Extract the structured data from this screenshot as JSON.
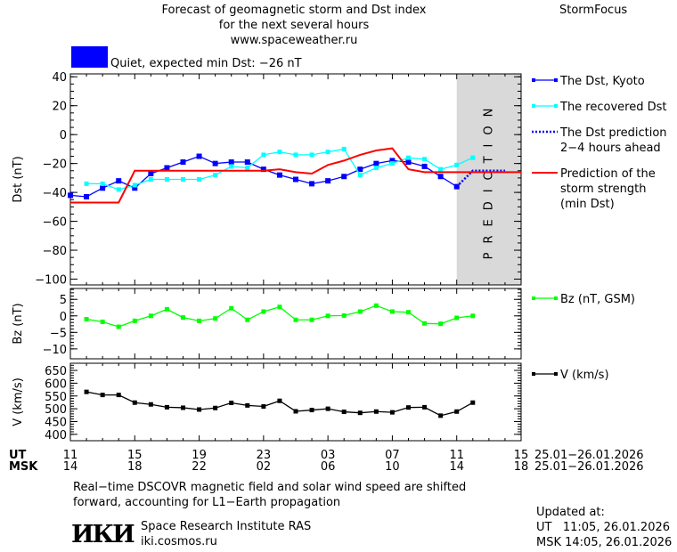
{
  "header": {
    "title_lines": [
      "Forecast of geomagnetic storm and Dst index",
      "for the next several hours",
      "www.spaceweather.ru"
    ],
    "brand": "StormFocus",
    "status_color": "#0000ff",
    "status_text": "Quiet, expected min Dst: −26 nT"
  },
  "time_axis": {
    "ut_label": "UT",
    "msk_label": "MSK",
    "ut_ticks": [
      "11",
      "15",
      "19",
      "23",
      "03",
      "07",
      "11",
      "15"
    ],
    "msk_ticks": [
      "14",
      "18",
      "22",
      "02",
      "06",
      "10",
      "14",
      "18"
    ],
    "date_range": "25.01−26.01.2026"
  },
  "footer": {
    "note_lines": [
      "Real−time DSCOVR magnetic field and solar wind speed are shifted",
      "forward, accounting for L1−Earth propagation"
    ],
    "logo_text": "ИКИ",
    "institute": "Space Research Institute RAS",
    "site": "iki.cosmos.ru",
    "updated_label": "Updated at:",
    "updated_ut": "UT   11:05, 26.01.2026",
    "updated_msk": "MSK 14:05, 26.01.2026"
  },
  "chart_data": [
    {
      "type": "line",
      "ylabel": "Dst (nT)",
      "ylim": [
        -104,
        42
      ],
      "yticks": [
        40,
        20,
        0,
        -20,
        -40,
        -60,
        -80,
        -100
      ],
      "prediction_region": {
        "from": "26.01 11:00",
        "to": "26.01 15:00",
        "label": "PREDICTION",
        "color": "#d9d9d9"
      },
      "x": [
        "25.01 11:00",
        "25.01 12:00",
        "25.01 13:00",
        "25.01 14:00",
        "25.01 15:00",
        "25.01 16:00",
        "25.01 17:00",
        "25.01 18:00",
        "25.01 19:00",
        "25.01 20:00",
        "25.01 21:00",
        "25.01 22:00",
        "25.01 23:00",
        "26.01 00:00",
        "26.01 01:00",
        "26.01 02:00",
        "26.01 03:00",
        "26.01 04:00",
        "26.01 05:00",
        "26.01 06:00",
        "26.01 07:00",
        "26.01 08:00",
        "26.01 09:00",
        "26.01 10:00",
        "26.01 11:00",
        "26.01 12:00",
        "26.01 13:00",
        "26.01 14:00",
        "26.01 15:00"
      ],
      "series": [
        {
          "name": "The Dst, Kyoto",
          "color": "#0000ff",
          "marker": "square",
          "values": [
            -42,
            -43,
            -37,
            -32,
            -37,
            -27,
            -23,
            -19,
            -15,
            -20,
            -19,
            -19,
            -24,
            -28,
            -31,
            -34,
            -32,
            -29,
            -24,
            -20,
            -18,
            -19,
            -22,
            -29,
            -36,
            null,
            null,
            null,
            null
          ]
        },
        {
          "name": "The recovered Dst",
          "color": "#00ffff",
          "marker": "square",
          "values": [
            null,
            -34,
            -34,
            -38,
            -35,
            -31,
            -31,
            -31,
            -31,
            -28,
            -22,
            -23,
            -14,
            -12,
            -14,
            -14,
            -12,
            -10,
            -28,
            -23,
            -20,
            -16,
            -17,
            -24,
            -21,
            -16,
            null,
            null,
            null
          ]
        },
        {
          "name": "The Dst prediction 2−4 hours ahead",
          "color": "#0000ff",
          "style": "dotted",
          "values": [
            null,
            null,
            null,
            null,
            null,
            null,
            null,
            null,
            null,
            null,
            null,
            null,
            null,
            null,
            null,
            null,
            null,
            null,
            null,
            null,
            null,
            null,
            null,
            null,
            -36,
            -25,
            -25,
            -25,
            null
          ]
        },
        {
          "name": "Prediction of the storm strength (min Dst)",
          "color": "#ff0000",
          "values": [
            -47,
            -47,
            -47,
            -47,
            -25,
            -25,
            -25,
            -25,
            -25,
            -25,
            -25,
            -25,
            -25,
            -24,
            -26,
            -27,
            -21,
            -18,
            -14,
            -11,
            -9.5,
            -24,
            -26,
            -26,
            -26,
            -26,
            -26,
            -26,
            -26
          ]
        }
      ],
      "legend_placement": "right"
    },
    {
      "type": "line",
      "ylabel": "Bz (nT)",
      "ylim": [
        -13,
        8.3
      ],
      "yticks": [
        5,
        0,
        -5,
        -10
      ],
      "x": [
        "25.01 12:00",
        "25.01 13:00",
        "25.01 14:00",
        "25.01 15:00",
        "25.01 16:00",
        "25.01 17:00",
        "25.01 18:00",
        "25.01 19:00",
        "25.01 20:00",
        "25.01 21:00",
        "25.01 22:00",
        "25.01 23:00",
        "26.01 00:00",
        "26.01 01:00",
        "26.01 02:00",
        "26.01 03:00",
        "26.01 04:00",
        "26.01 05:00",
        "26.01 06:00",
        "26.01 07:00",
        "26.01 08:00",
        "26.01 09:00",
        "26.01 10:00",
        "26.01 11:00",
        "26.01 12:00"
      ],
      "series": [
        {
          "name": "Bz (nT, GSM)",
          "color": "#00ff00",
          "marker": "square",
          "values": [
            -1,
            -1.8,
            -3.3,
            -1.5,
            0,
            2,
            -0.5,
            -1.5,
            -0.8,
            2.3,
            -1.2,
            1.3,
            2.7,
            -1.2,
            -1.2,
            0,
            0.1,
            1.3,
            3.1,
            1.3,
            1.1,
            -2.3,
            -2.4,
            -0.6,
            0
          ]
        }
      ],
      "legend_placement": "right"
    },
    {
      "type": "line",
      "ylabel": "V (km/s)",
      "ylim": [
        375,
        678
      ],
      "yticks": [
        650,
        600,
        550,
        500,
        450,
        400
      ],
      "x": [
        "25.01 12:00",
        "25.01 13:00",
        "25.01 14:00",
        "25.01 15:00",
        "25.01 16:00",
        "25.01 17:00",
        "25.01 18:00",
        "25.01 19:00",
        "25.01 20:00",
        "25.01 21:00",
        "25.01 22:00",
        "25.01 23:00",
        "26.01 00:00",
        "26.01 01:00",
        "26.01 02:00",
        "26.01 03:00",
        "26.01 04:00",
        "26.01 05:00",
        "26.01 06:00",
        "26.01 07:00",
        "26.01 08:00",
        "26.01 09:00",
        "26.01 10:00",
        "26.01 11:00",
        "26.01 12:00"
      ],
      "series": [
        {
          "name": "V (km/s)",
          "color": "#000000",
          "marker": "square",
          "values": [
            566,
            554,
            554,
            524,
            517,
            506,
            504,
            497,
            503,
            523,
            513,
            509,
            531,
            490,
            495,
            500,
            488,
            484,
            489,
            486,
            505,
            506,
            473,
            489,
            524
          ]
        }
      ],
      "legend_placement": "right"
    }
  ]
}
